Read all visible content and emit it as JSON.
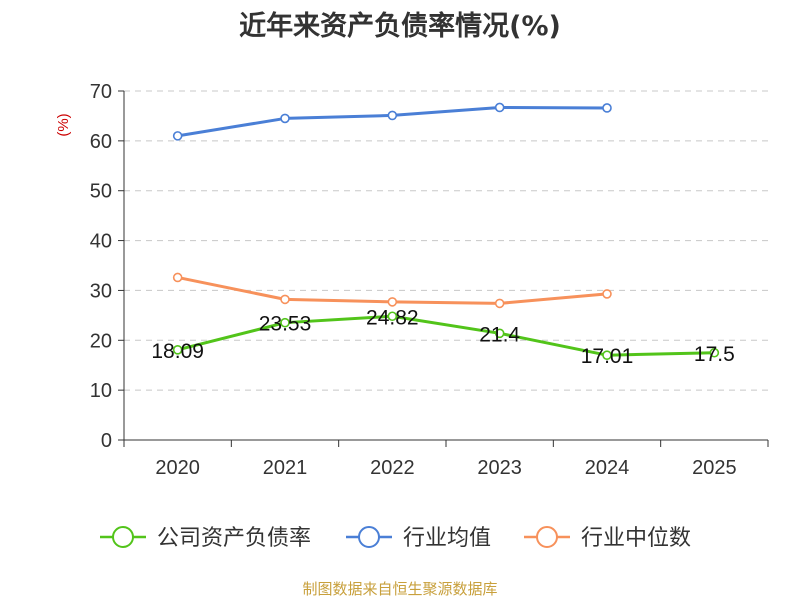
{
  "chart_data": {
    "type": "line",
    "title": "近年来资产负债率情况(%)",
    "ylabel": "(%)",
    "xlabel": "",
    "categories": [
      "2020",
      "2021",
      "2022",
      "2023",
      "2024",
      "2025"
    ],
    "ylim": [
      0,
      70
    ],
    "yticks": [
      0,
      10,
      20,
      30,
      40,
      50,
      60,
      70
    ],
    "grid": true,
    "legend_position": "bottom",
    "series": [
      {
        "name": "公司资产负债率",
        "color": "#52c41a",
        "values": [
          18.09,
          23.53,
          24.82,
          21.4,
          17.01,
          17.5
        ],
        "labels": [
          "18.09",
          "23.53",
          "24.82",
          "21.4",
          "17.01",
          "17.5"
        ]
      },
      {
        "name": "行业均值",
        "color": "#4a7fd6",
        "values": [
          61,
          64.5,
          65.1,
          66.7,
          66.6,
          null
        ]
      },
      {
        "name": "行业中位数",
        "color": "#f7915b",
        "values": [
          32.6,
          28.2,
          27.7,
          27.4,
          29.3,
          null
        ]
      }
    ]
  },
  "source_text": "制图数据来自恒生聚源数据库"
}
